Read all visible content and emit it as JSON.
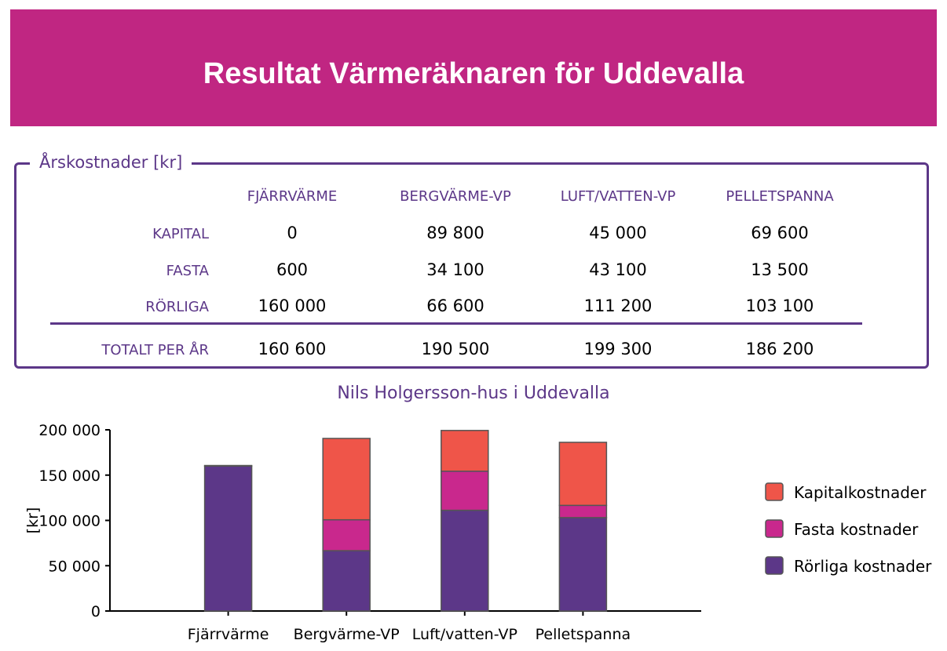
{
  "banner": {
    "title": "Resultat Värmeräknaren för Uddevalla"
  },
  "table": {
    "caption": "Årskostnader  [kr]",
    "columns": [
      "FJÄRRVÄRME",
      "BERGVÄRME-VP",
      "LUFT/VATTEN-VP",
      "PELLETSPANNA"
    ],
    "rows": [
      {
        "label": "KAPITAL",
        "values": [
          "0",
          "89 800",
          "45 000",
          "69 600"
        ]
      },
      {
        "label": "FASTA",
        "values": [
          "600",
          "34 100",
          "43 100",
          "13 500"
        ]
      },
      {
        "label": "RÖRLIGA",
        "values": [
          "160 000",
          "66 600",
          "111 200",
          "103 100"
        ]
      }
    ],
    "total": {
      "label": "TOTALT PER ÅR",
      "values": [
        "160 600",
        "190 500",
        "199 300",
        "186 200"
      ]
    }
  },
  "colors": {
    "banner": "#c02682",
    "accent": "#5c3788",
    "kapital": "#ef5549",
    "fasta": "#c9288d",
    "rorliga": "#5c3788"
  },
  "chart_data": {
    "type": "bar",
    "stacked": true,
    "title": "Nils Holgersson-hus i Uddevalla",
    "ylabel": "[kr]",
    "xlabel": "",
    "ylim": [
      0,
      200000
    ],
    "yticks": [
      0,
      50000,
      100000,
      150000,
      200000
    ],
    "ytick_labels": [
      "0",
      "50 000",
      "100 000",
      "150 000",
      "200 000"
    ],
    "categories": [
      "Fjärrvärme",
      "Bergvärme-VP",
      "Luft/vatten-VP",
      "Pelletspanna"
    ],
    "series": [
      {
        "name": "Rörliga kostnader",
        "values": [
          160000,
          66600,
          111200,
          103100
        ]
      },
      {
        "name": "Fasta kostnader",
        "values": [
          600,
          34100,
          43100,
          13500
        ]
      },
      {
        "name": "Kapitalkostnader",
        "values": [
          0,
          89800,
          45000,
          69600
        ]
      }
    ],
    "legend": {
      "position": "right",
      "order": [
        "Kapitalkostnader",
        "Fasta kostnader",
        "Rörliga kostnader"
      ]
    }
  }
}
